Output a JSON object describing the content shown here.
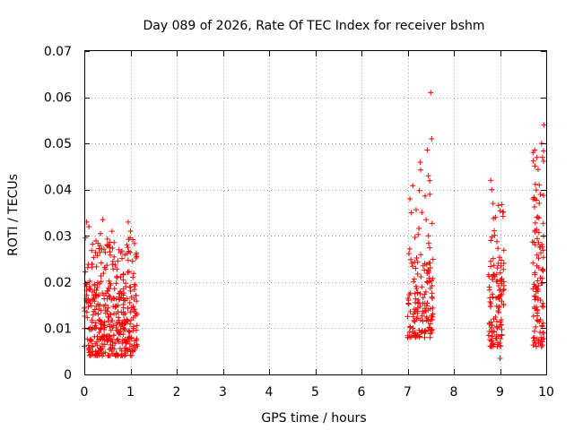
{
  "chart_data": {
    "type": "scatter",
    "title": "Day 089 of 2026, Rate Of TEC Index for receiver bshm",
    "xlabel": "GPS time / hours",
    "ylabel": "ROTI / TECUs",
    "xlim": [
      0,
      10
    ],
    "ylim": [
      0,
      0.07
    ],
    "grid": true,
    "marker": "+",
    "marker_color": "#ff0000",
    "x_ticks": [
      0,
      1,
      2,
      3,
      4,
      5,
      6,
      7,
      8,
      9,
      10
    ],
    "x_tick_labels": [
      "0",
      "1",
      "2",
      "3",
      "4",
      "5",
      "6",
      "7",
      "8",
      "9",
      "10"
    ],
    "y_ticks": [
      0,
      0.01,
      0.02,
      0.03,
      0.04,
      0.05,
      0.06,
      0.07
    ],
    "y_tick_labels": [
      "0",
      "0.01",
      "0.02",
      "0.03",
      "0.04",
      "0.05",
      "0.06",
      "0.07"
    ],
    "clusters": [
      {
        "x_range": [
          0.0,
          1.15
        ],
        "y_range": [
          0.003,
          0.034
        ],
        "typical_y_range": [
          0.004,
          0.02
        ],
        "count": 420
      },
      {
        "x_range": [
          7.0,
          7.55
        ],
        "y_range": [
          0.005,
          0.061
        ],
        "typical_y_range": [
          0.008,
          0.025
        ],
        "count": 150
      },
      {
        "x_range": [
          8.75,
          9.1
        ],
        "y_range": [
          0.003,
          0.042
        ],
        "typical_y_range": [
          0.006,
          0.025
        ],
        "count": 120
      },
      {
        "x_range": [
          9.7,
          9.95
        ],
        "y_range": [
          0.005,
          0.055
        ],
        "typical_y_range": [
          0.006,
          0.035
        ],
        "count": 110
      }
    ],
    "notable_points": [
      {
        "x": 7.5,
        "y": 0.061
      },
      {
        "x": 7.52,
        "y": 0.051
      },
      {
        "x": 7.45,
        "y": 0.043
      },
      {
        "x": 7.48,
        "y": 0.039
      },
      {
        "x": 7.05,
        "y": 0.038
      },
      {
        "x": 7.08,
        "y": 0.035
      },
      {
        "x": 7.4,
        "y": 0.0335
      },
      {
        "x": 7.45,
        "y": 0.03
      },
      {
        "x": 8.8,
        "y": 0.042
      },
      {
        "x": 8.82,
        "y": 0.04
      },
      {
        "x": 8.85,
        "y": 0.037
      },
      {
        "x": 8.9,
        "y": 0.034
      },
      {
        "x": 8.8,
        "y": 0.029
      },
      {
        "x": 9.0,
        "y": 0.0035
      },
      {
        "x": 9.95,
        "y": 0.054
      },
      {
        "x": 9.9,
        "y": 0.05
      },
      {
        "x": 9.92,
        "y": 0.047
      },
      {
        "x": 9.85,
        "y": 0.041
      },
      {
        "x": 9.75,
        "y": 0.038
      },
      {
        "x": 9.8,
        "y": 0.034
      },
      {
        "x": 0.05,
        "y": 0.033
      },
      {
        "x": 0.1,
        "y": 0.032
      },
      {
        "x": 0.4,
        "y": 0.0335
      },
      {
        "x": 0.95,
        "y": 0.033
      },
      {
        "x": 1.0,
        "y": 0.031
      },
      {
        "x": 0.6,
        "y": 0.031
      },
      {
        "x": 0.55,
        "y": 0.0275
      },
      {
        "x": 0.75,
        "y": 0.027
      },
      {
        "x": 0.35,
        "y": 0.0305
      }
    ]
  }
}
